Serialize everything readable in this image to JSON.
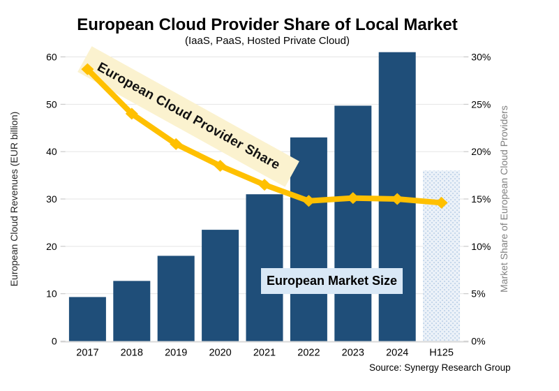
{
  "chart_data": {
    "type": "bar",
    "combo": "bar+line",
    "title": "European Cloud Provider Share of Local Market",
    "subtitle": "(IaaS, PaaS, Hosted Private Cloud)",
    "source": "Source: Synergy Research Group",
    "categories": [
      "2017",
      "2018",
      "2019",
      "2020",
      "2021",
      "2022",
      "2023",
      "2024",
      "H125"
    ],
    "bar_series": {
      "name": "European Market Size",
      "axis": "left",
      "unit": "EUR billion",
      "values": [
        9.3,
        12.7,
        18,
        23.5,
        31,
        43,
        49.7,
        61,
        36
      ],
      "color": "#1F4E79",
      "last_is_pattern": true,
      "pattern_note": "H125 bar drawn with light-blue dotted pattern fill (estimate/partial year)"
    },
    "line_series": {
      "name": "European Cloud Provider Share",
      "axis": "right",
      "unit": "%",
      "values": [
        28.7,
        24.0,
        20.8,
        18.5,
        16.5,
        14.8,
        15.1,
        15.0,
        14.6
      ],
      "color": "#FFC000",
      "marker": "diamond"
    },
    "left_axis": {
      "label": "European Cloud Revenues (EUR billion)",
      "min": 0,
      "max": 60,
      "ticks": [
        "0",
        "10",
        "20",
        "30",
        "40",
        "50",
        "60"
      ]
    },
    "right_axis": {
      "label": "Market Share of European Cloud Providers",
      "min": 0,
      "max": 30,
      "ticks": [
        "0%",
        "5%",
        "10%",
        "15%",
        "20%",
        "25%",
        "30%"
      ]
    },
    "annotations": {
      "line_label": "European Cloud Provider Share",
      "line_label_bg": "#FBF2CF",
      "bar_label": "European Market Size",
      "bar_label_bg": "#D9E8F6"
    },
    "grid": true,
    "legend_position": "none"
  }
}
